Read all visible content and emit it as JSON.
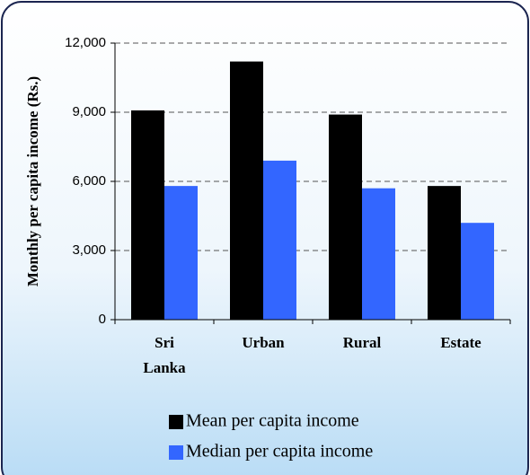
{
  "chart_data": {
    "type": "bar",
    "y_label": "Monthly per capita income (Rs.)",
    "categories": [
      "Sri Lanka",
      "Urban",
      "Rural",
      "Estate"
    ],
    "series": [
      {
        "name": "Mean per capita income",
        "color": "#000000",
        "values": [
          9080,
          11200,
          8900,
          5800
        ]
      },
      {
        "name": "Median per capita income",
        "color": "#3366ff",
        "values": [
          5800,
          6900,
          5700,
          4200
        ]
      }
    ],
    "ylim": [
      0,
      12000
    ],
    "yticks": [
      0,
      {
        "value": 3000,
        "label": "3,000"
      },
      {
        "value": 6000,
        "label": "6,000"
      },
      {
        "value": 9000,
        "label": "9,000"
      },
      {
        "value": 12000,
        "label": "12,000"
      }
    ],
    "grid": true
  }
}
